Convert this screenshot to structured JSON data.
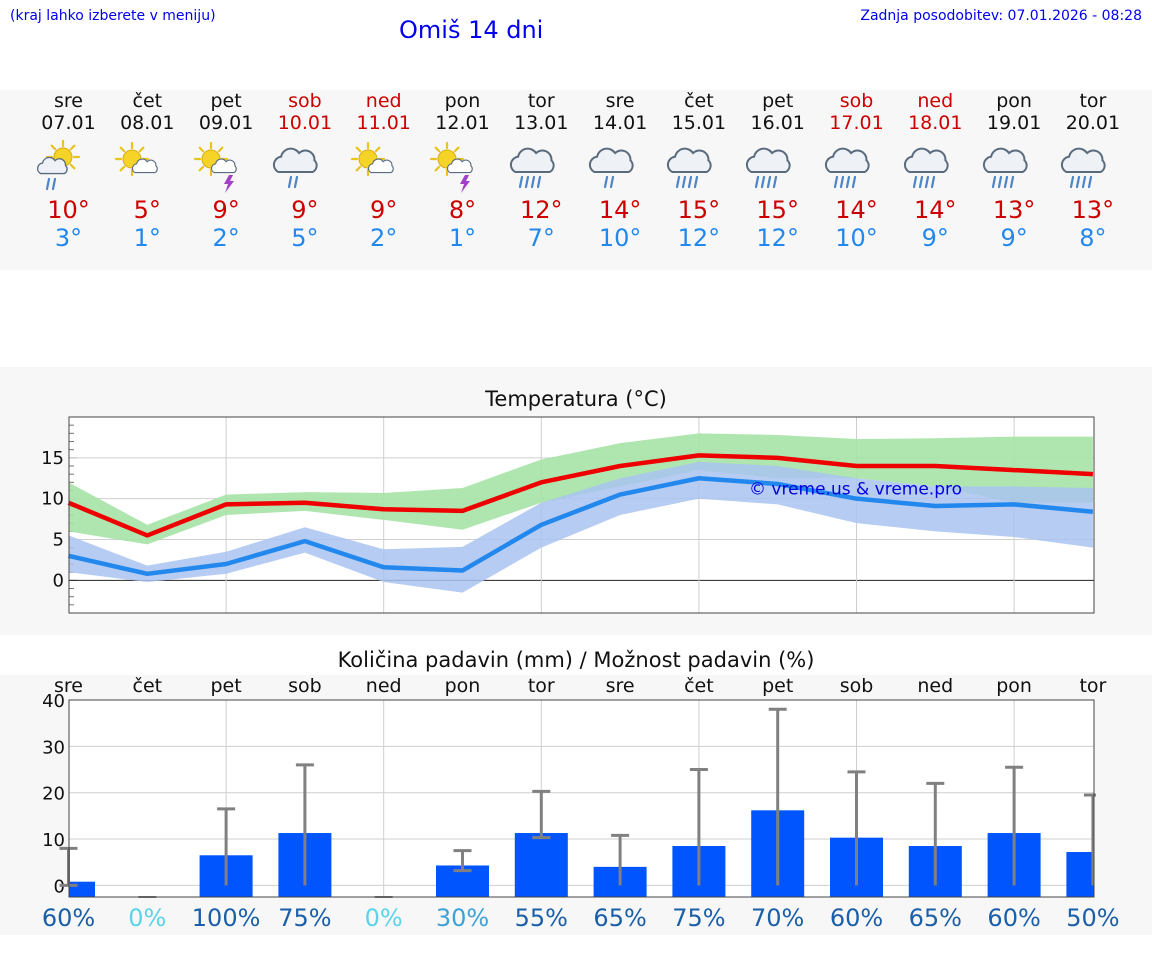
{
  "header": {
    "hint": "(kraj lahko izberete v meniju)",
    "title": "Omiš 14 dni",
    "updated": "Zadnja posodobitev: 07.01.2026 - 08:28"
  },
  "colors": {
    "link": "#0000ee",
    "weekend": "#cc0000",
    "tmax": "#cc0000",
    "tmin": "#2288ee",
    "max_band": "#a6e3a6",
    "min_band": "#a9c3f0",
    "bar": "#0055ff",
    "error": "#808080"
  },
  "days": [
    {
      "name": "sre",
      "date": "07.01",
      "weekend": false,
      "icon": "sun-cloud-rain-icon",
      "tmax": "10°",
      "tmin": "3°"
    },
    {
      "name": "čet",
      "date": "08.01",
      "weekend": false,
      "icon": "sun-cloud-icon",
      "tmax": "5°",
      "tmin": "1°"
    },
    {
      "name": "pet",
      "date": "09.01",
      "weekend": false,
      "icon": "sun-thunder-icon",
      "tmax": "9°",
      "tmin": "2°"
    },
    {
      "name": "sob",
      "date": "10.01",
      "weekend": true,
      "icon": "cloud-rain-icon",
      "tmax": "9°",
      "tmin": "5°"
    },
    {
      "name": "ned",
      "date": "11.01",
      "weekend": true,
      "icon": "sun-cloud-icon",
      "tmax": "9°",
      "tmin": "2°"
    },
    {
      "name": "pon",
      "date": "12.01",
      "weekend": false,
      "icon": "sun-thunder-icon",
      "tmax": "8°",
      "tmin": "1°"
    },
    {
      "name": "tor",
      "date": "13.01",
      "weekend": false,
      "icon": "heavy-rain-icon",
      "tmax": "12°",
      "tmin": "7°"
    },
    {
      "name": "sre",
      "date": "14.01",
      "weekend": false,
      "icon": "cloud-rain-icon",
      "tmax": "14°",
      "tmin": "10°"
    },
    {
      "name": "čet",
      "date": "15.01",
      "weekend": false,
      "icon": "heavy-rain-icon",
      "tmax": "15°",
      "tmin": "12°"
    },
    {
      "name": "pet",
      "date": "16.01",
      "weekend": false,
      "icon": "heavy-rain-icon",
      "tmax": "15°",
      "tmin": "12°"
    },
    {
      "name": "sob",
      "date": "17.01",
      "weekend": true,
      "icon": "heavy-rain-icon",
      "tmax": "14°",
      "tmin": "10°"
    },
    {
      "name": "ned",
      "date": "18.01",
      "weekend": true,
      "icon": "heavy-rain-icon",
      "tmax": "14°",
      "tmin": "9°"
    },
    {
      "name": "pon",
      "date": "19.01",
      "weekend": false,
      "icon": "heavy-rain-icon",
      "tmax": "13°",
      "tmin": "9°"
    },
    {
      "name": "tor",
      "date": "20.01",
      "weekend": false,
      "icon": "heavy-rain-icon",
      "tmax": "13°",
      "tmin": "8°"
    }
  ],
  "chart_data": [
    {
      "type": "line",
      "title": "Temperatura (°C)",
      "watermark": "© vreme.us & vreme.pro",
      "ylim": [
        -4,
        20
      ],
      "yticks": [
        0,
        5,
        10,
        15
      ],
      "series": [
        {
          "name": "max",
          "values": [
            9.5,
            5.5,
            9.3,
            9.5,
            8.7,
            8.5,
            12.0,
            14.0,
            15.3,
            15.0,
            14.0,
            14.0,
            13.5,
            13.0
          ],
          "band_high": [
            12,
            6.8,
            10.5,
            10.8,
            10.7,
            11.3,
            14.8,
            16.8,
            18.0,
            17.8,
            17.3,
            17.4,
            17.6,
            17.6
          ],
          "band_low": [
            6,
            4.4,
            8,
            8.5,
            7.4,
            6.2,
            9.5,
            11.5,
            13.5,
            12.5,
            12.5,
            11.5,
            9.5,
            9.5
          ]
        },
        {
          "name": "min",
          "values": [
            3.0,
            0.8,
            2.0,
            4.8,
            1.6,
            1.2,
            6.8,
            10.5,
            12.5,
            11.8,
            10.0,
            9.1,
            9.3,
            8.4
          ],
          "band_high": [
            5.5,
            1.8,
            3.5,
            6.5,
            3.8,
            4.1,
            9.5,
            12.5,
            14.5,
            14.0,
            12.5,
            11.5,
            11.5,
            11.3
          ],
          "band_low": [
            1.0,
            -0.2,
            0.8,
            3.4,
            -0.2,
            -1.5,
            4.0,
            8.0,
            10.0,
            9.3,
            7.0,
            6.0,
            5.3,
            4.0
          ]
        }
      ]
    },
    {
      "type": "bar",
      "title": "Količina padavin (mm) / Možnost padavin (%)",
      "categories": [
        "sre",
        "čet",
        "pet",
        "sob",
        "ned",
        "pon",
        "tor",
        "sre",
        "čet",
        "pet",
        "sob",
        "ned",
        "pon",
        "tor"
      ],
      "ylim": [
        -2.5,
        40
      ],
      "yticks": [
        0,
        10,
        20,
        30,
        40
      ],
      "values": [
        0.8,
        0,
        6.5,
        11.3,
        0,
        4.3,
        11.3,
        4.0,
        8.5,
        16.2,
        10.3,
        8.5,
        11.3,
        7.2
      ],
      "err_low": [
        0.8,
        0,
        0,
        0,
        0,
        1.1,
        1.0,
        0,
        0,
        0,
        0,
        0,
        0,
        0
      ],
      "err_high": [
        8.0,
        0,
        16.5,
        26.0,
        0,
        7.5,
        20.3,
        10.8,
        25.0,
        38.0,
        24.5,
        22.0,
        25.5,
        19.5
      ],
      "probability_labels": [
        "60%",
        "0%",
        "100%",
        "75%",
        "0%",
        "30%",
        "55%",
        "65%",
        "75%",
        "70%",
        "60%",
        "65%",
        "60%",
        "50%"
      ],
      "probability_colors": [
        "#1a5fa8",
        "#5bd3e8",
        "#1a5fa8",
        "#1a5fa8",
        "#5bd3e8",
        "#3da2d6",
        "#1a5fa8",
        "#1a5fa8",
        "#1a5fa8",
        "#1a5fa8",
        "#1a5fa8",
        "#1a5fa8",
        "#1a5fa8",
        "#1a5fa8"
      ]
    }
  ]
}
